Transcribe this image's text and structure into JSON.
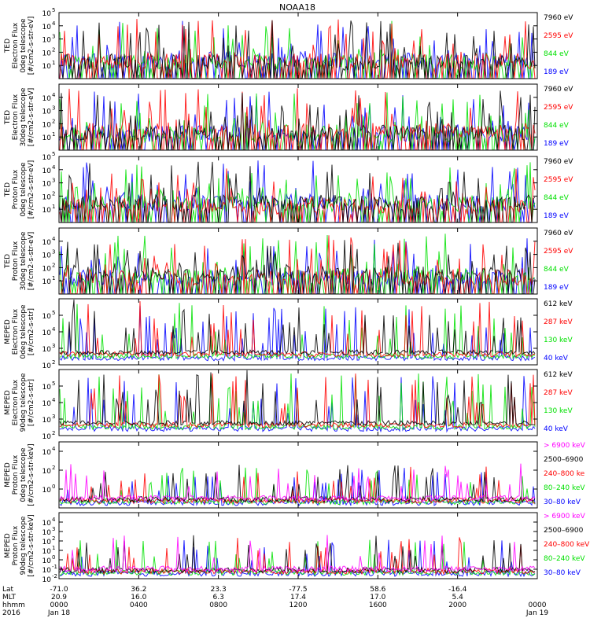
{
  "title": "NOAA18",
  "colors": {
    "black": "#000000",
    "red": "#ff0000",
    "green": "#00e000",
    "blue": "#0000ff",
    "magenta": "#ff00ff"
  },
  "chart_data": [
    {
      "type": "line",
      "ylabel": [
        "TED",
        "Electron Flux",
        "0deg telescope",
        "[#/cm2-s-str-eV]"
      ],
      "yscale": "log",
      "ylim_exp": [
        0,
        5
      ],
      "yticks_exp": [
        1,
        2,
        3,
        4,
        5
      ],
      "legend_placement": "right",
      "series": [
        {
          "name": "7960 eV",
          "color": "#000000"
        },
        {
          "name": "2595 eV",
          "color": "#ff0000"
        },
        {
          "name": "844 eV",
          "color": "#00e000"
        },
        {
          "name": "189 eV",
          "color": "#0000ff"
        }
      ]
    },
    {
      "type": "line",
      "ylabel": [
        "TED",
        "Electron Flux",
        "30deg telescope",
        "[#/cm2-s-str-eV]"
      ],
      "yscale": "log",
      "ylim_exp": [
        0,
        5
      ],
      "yticks_exp": [
        1,
        2,
        3,
        4
      ],
      "legend_placement": "right",
      "series": [
        {
          "name": "7960 eV",
          "color": "#000000"
        },
        {
          "name": "2595 eV",
          "color": "#ff0000"
        },
        {
          "name": "844 eV",
          "color": "#00e000"
        },
        {
          "name": "189 eV",
          "color": "#0000ff"
        }
      ]
    },
    {
      "type": "line",
      "ylabel": [
        "TED",
        "Proton Flux",
        "0deg telescope",
        "[#/cm2-s-str-eV]"
      ],
      "yscale": "log",
      "ylim_exp": [
        0,
        5
      ],
      "yticks_exp": [
        1,
        2,
        3,
        4,
        5
      ],
      "legend_placement": "right",
      "series": [
        {
          "name": "7960 eV",
          "color": "#000000"
        },
        {
          "name": "2595 eV",
          "color": "#ff0000"
        },
        {
          "name": "844 eV",
          "color": "#00e000"
        },
        {
          "name": "189 eV",
          "color": "#0000ff"
        }
      ]
    },
    {
      "type": "line",
      "ylabel": [
        "TED",
        "Proton Flux",
        "30deg telescope",
        "[#/cm2-s-str-eV]"
      ],
      "yscale": "log",
      "ylim_exp": [
        0,
        5
      ],
      "yticks_exp": [
        1,
        2,
        3,
        4
      ],
      "legend_placement": "right",
      "series": [
        {
          "name": "7960 eV",
          "color": "#000000"
        },
        {
          "name": "2595 eV",
          "color": "#ff0000"
        },
        {
          "name": "844 eV",
          "color": "#00e000"
        },
        {
          "name": "189 eV",
          "color": "#0000ff"
        }
      ]
    },
    {
      "type": "line",
      "ylabel": [
        "MEPED",
        "Electron Flux",
        "0deg telescope",
        "[#/cm2-s-str]"
      ],
      "yscale": "log",
      "ylim_exp": [
        2,
        6
      ],
      "yticks_exp": [
        2,
        3,
        4,
        5
      ],
      "legend_placement": "right",
      "series": [
        {
          "name": "612 keV",
          "color": "#000000"
        },
        {
          "name": "287 keV",
          "color": "#ff0000"
        },
        {
          "name": "130 keV",
          "color": "#00e000"
        },
        {
          "name": "40 keV",
          "color": "#0000ff"
        }
      ]
    },
    {
      "type": "line",
      "ylabel": [
        "MEPED",
        "Electron Flux",
        "90deg telescope",
        "[#/cm2-s-str]"
      ],
      "yscale": "log",
      "ylim_exp": [
        2,
        6
      ],
      "yticks_exp": [
        2,
        3,
        4,
        5
      ],
      "legend_placement": "right",
      "series": [
        {
          "name": "612 keV",
          "color": "#000000"
        },
        {
          "name": "287 keV",
          "color": "#ff0000"
        },
        {
          "name": "130 keV",
          "color": "#00e000"
        },
        {
          "name": "40 keV",
          "color": "#0000ff"
        }
      ]
    },
    {
      "type": "line",
      "ylabel": [
        "MEPED",
        "Proton Flux",
        "0deg telescope",
        "[#/cm2-s-str-keV]"
      ],
      "yscale": "log",
      "ylim_exp": [
        -2,
        5
      ],
      "yticks_exp": [
        0,
        2,
        4
      ],
      "legend_placement": "right",
      "series": [
        {
          "name": "> 6900 keV",
          "color": "#ff00ff"
        },
        {
          "name": "2500–6900",
          "color": "#000000"
        },
        {
          "name": "240–800 ke",
          "color": "#ff0000"
        },
        {
          "name": "80–240 keV",
          "color": "#00e000"
        },
        {
          "name": "30–80 keV",
          "color": "#0000ff"
        }
      ]
    },
    {
      "type": "line",
      "ylabel": [
        "MEPED",
        "Proton Flux",
        "90deg telescope",
        "[#/cm2-s-str-keV]"
      ],
      "yscale": "log",
      "ylim_exp": [
        -2,
        5
      ],
      "yticks_exp": [
        -2,
        -1,
        0,
        1,
        2,
        3,
        4
      ],
      "legend_placement": "right",
      "series": [
        {
          "name": "> 6900 keV",
          "color": "#ff00ff"
        },
        {
          "name": "2500–6900",
          "color": "#000000"
        },
        {
          "name": "240–800 keV",
          "color": "#ff0000"
        },
        {
          "name": "80–240 keV",
          "color": "#00e000"
        },
        {
          "name": "30–80 keV",
          "color": "#0000ff"
        }
      ]
    }
  ],
  "xaxis": {
    "row_labels": [
      "Lat",
      "MLT",
      "hhmm",
      "2016"
    ],
    "ticks": [
      {
        "lat": "-71.0",
        "mlt": "20.9",
        "hhmm": "0000",
        "date": "Jan 18"
      },
      {
        "lat": "36.2",
        "mlt": "16.0",
        "hhmm": "0400",
        "date": ""
      },
      {
        "lat": "23.3",
        "mlt": "6.3",
        "hhmm": "0800",
        "date": ""
      },
      {
        "lat": "-77.5",
        "mlt": "17.4",
        "hhmm": "1200",
        "date": ""
      },
      {
        "lat": "58.6",
        "mlt": "17.0",
        "hhmm": "1600",
        "date": ""
      },
      {
        "lat": "-16.4",
        "mlt": "5.4",
        "hhmm": "2000",
        "date": ""
      },
      {
        "lat": "",
        "mlt": "",
        "hhmm": "0000",
        "date": "Jan 19"
      }
    ]
  }
}
